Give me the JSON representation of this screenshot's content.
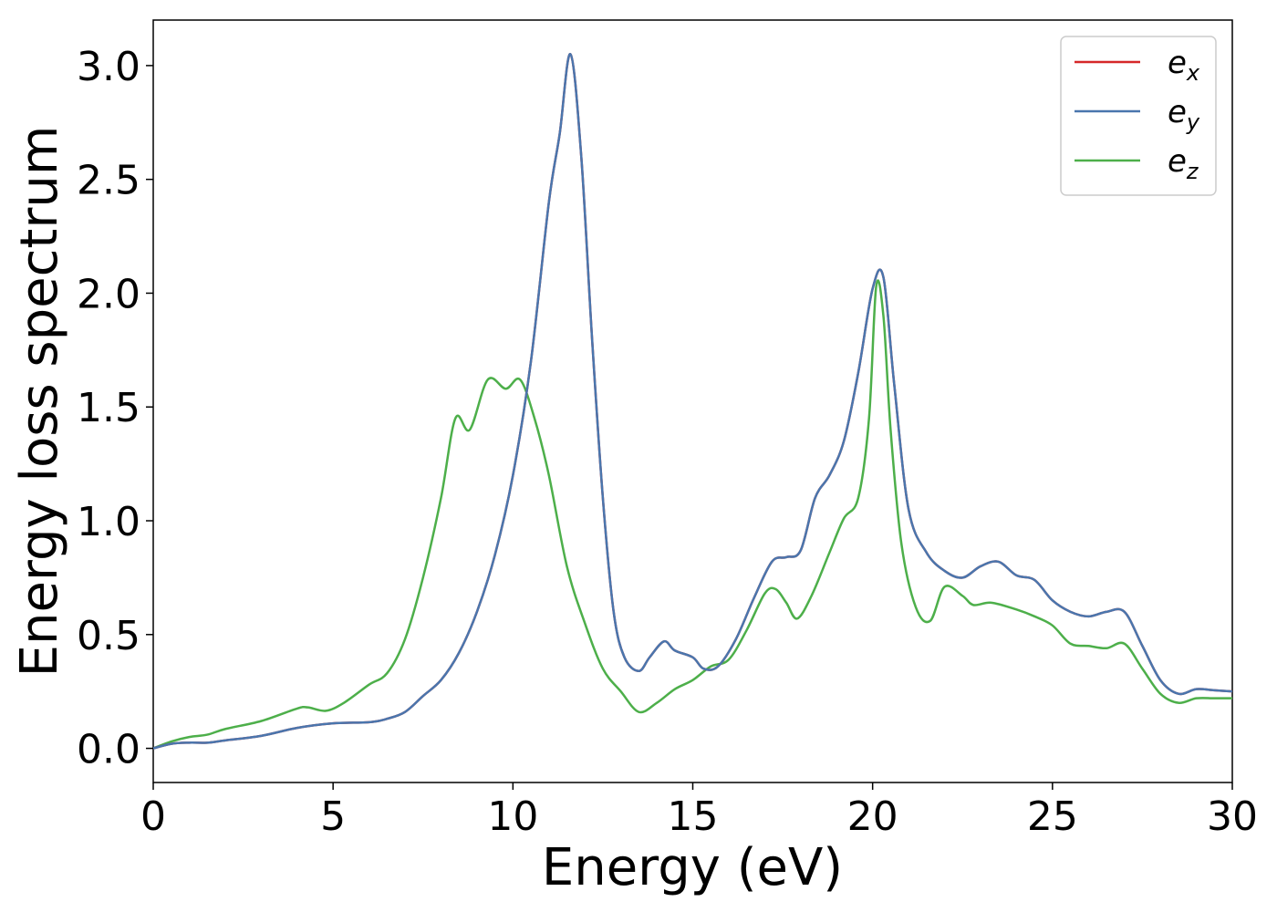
{
  "chart_data": {
    "type": "line",
    "xlabel": "Energy (eV)",
    "ylabel": "Energy loss spectrum",
    "xlim": [
      0,
      30
    ],
    "ylim": [
      -0.15,
      3.2
    ],
    "xticks": [
      "0",
      "5",
      "10",
      "15",
      "20",
      "25",
      "30"
    ],
    "xtick_values": [
      0,
      5,
      10,
      15,
      20,
      25,
      30
    ],
    "yticks": [
      "0.0",
      "0.5",
      "1.0",
      "1.5",
      "2.0",
      "2.5",
      "3.0"
    ],
    "ytick_values": [
      0,
      0.5,
      1.0,
      1.5,
      2.0,
      2.5,
      3.0
    ],
    "grid": false,
    "legend_position": "top-right",
    "series": [
      {
        "name": "e",
        "subscript": "x",
        "color": "#d62728",
        "x": [
          0,
          0.5,
          1,
          1.5,
          2,
          3,
          4,
          5,
          6,
          6.5,
          7,
          7.5,
          8,
          8.5,
          9,
          9.5,
          10,
          10.5,
          11,
          11.3,
          11.6,
          11.9,
          12.2,
          12.5,
          12.8,
          13.1,
          13.5,
          13.8,
          14.2,
          14.5,
          15,
          15.3,
          15.7,
          16.2,
          16.7,
          17.2,
          17.6,
          18,
          18.4,
          18.8,
          19.2,
          19.6,
          20,
          20.3,
          20.6,
          21,
          21.5,
          22,
          22.5,
          23,
          23.5,
          24,
          24.5,
          25,
          25.5,
          26,
          26.5,
          27,
          27.5,
          28,
          28.5,
          29,
          29.5,
          30
        ],
        "y": [
          0,
          0.02,
          0.025,
          0.025,
          0.035,
          0.055,
          0.09,
          0.11,
          0.115,
          0.13,
          0.16,
          0.23,
          0.3,
          0.42,
          0.6,
          0.85,
          1.2,
          1.7,
          2.4,
          2.7,
          3.05,
          2.6,
          1.8,
          1.1,
          0.6,
          0.4,
          0.34,
          0.4,
          0.47,
          0.43,
          0.4,
          0.35,
          0.36,
          0.48,
          0.66,
          0.82,
          0.84,
          0.87,
          1.1,
          1.2,
          1.35,
          1.65,
          2.02,
          2.07,
          1.6,
          1.05,
          0.86,
          0.78,
          0.75,
          0.8,
          0.82,
          0.76,
          0.74,
          0.65,
          0.6,
          0.58,
          0.6,
          0.6,
          0.45,
          0.3,
          0.24,
          0.26,
          0.255,
          0.25
        ]
      },
      {
        "name": "e",
        "subscript": "y",
        "color": "#4a76ad",
        "x": [
          0,
          0.5,
          1,
          1.5,
          2,
          3,
          4,
          5,
          6,
          6.5,
          7,
          7.5,
          8,
          8.5,
          9,
          9.5,
          10,
          10.5,
          11,
          11.3,
          11.6,
          11.9,
          12.2,
          12.5,
          12.8,
          13.1,
          13.5,
          13.8,
          14.2,
          14.5,
          15,
          15.3,
          15.7,
          16.2,
          16.7,
          17.2,
          17.6,
          18,
          18.4,
          18.8,
          19.2,
          19.6,
          20,
          20.3,
          20.6,
          21,
          21.5,
          22,
          22.5,
          23,
          23.5,
          24,
          24.5,
          25,
          25.5,
          26,
          26.5,
          27,
          27.5,
          28,
          28.5,
          29,
          29.5,
          30
        ],
        "y": [
          0,
          0.02,
          0.025,
          0.025,
          0.035,
          0.055,
          0.09,
          0.11,
          0.115,
          0.13,
          0.16,
          0.23,
          0.3,
          0.42,
          0.6,
          0.85,
          1.2,
          1.7,
          2.4,
          2.7,
          3.05,
          2.6,
          1.8,
          1.1,
          0.6,
          0.4,
          0.34,
          0.4,
          0.47,
          0.43,
          0.4,
          0.35,
          0.36,
          0.48,
          0.66,
          0.82,
          0.84,
          0.87,
          1.1,
          1.2,
          1.35,
          1.65,
          2.02,
          2.07,
          1.6,
          1.05,
          0.86,
          0.78,
          0.75,
          0.8,
          0.82,
          0.76,
          0.74,
          0.65,
          0.6,
          0.58,
          0.6,
          0.6,
          0.45,
          0.3,
          0.24,
          0.26,
          0.255,
          0.25
        ]
      },
      {
        "name": "e",
        "subscript": "z",
        "color": "#4daf4a",
        "x": [
          0,
          0.5,
          1,
          1.5,
          2,
          3,
          4,
          4.3,
          4.8,
          5.3,
          6,
          6.5,
          7,
          7.5,
          8,
          8.4,
          8.8,
          9.3,
          9.8,
          10.2,
          10.6,
          11,
          11.5,
          12,
          12.5,
          13,
          13.5,
          14,
          14.5,
          15,
          15.5,
          16,
          16.5,
          17,
          17.3,
          17.6,
          17.9,
          18.3,
          18.8,
          19.2,
          19.6,
          19.9,
          20.1,
          20.3,
          20.5,
          20.8,
          21.2,
          21.6,
          22,
          22.5,
          22.8,
          23.3,
          24,
          24.5,
          25,
          25.5,
          26,
          26.5,
          27,
          27.5,
          28,
          28.5,
          29,
          29.5,
          30
        ],
        "y": [
          0,
          0.03,
          0.05,
          0.06,
          0.085,
          0.12,
          0.175,
          0.18,
          0.165,
          0.2,
          0.28,
          0.33,
          0.48,
          0.75,
          1.1,
          1.45,
          1.4,
          1.62,
          1.58,
          1.62,
          1.45,
          1.2,
          0.8,
          0.55,
          0.35,
          0.25,
          0.16,
          0.2,
          0.26,
          0.3,
          0.36,
          0.39,
          0.52,
          0.68,
          0.7,
          0.64,
          0.57,
          0.67,
          0.86,
          1.01,
          1.1,
          1.45,
          2.03,
          1.9,
          1.4,
          0.9,
          0.62,
          0.56,
          0.71,
          0.67,
          0.63,
          0.64,
          0.61,
          0.58,
          0.54,
          0.46,
          0.45,
          0.44,
          0.46,
          0.35,
          0.24,
          0.2,
          0.22,
          0.22,
          0.22
        ]
      }
    ]
  }
}
